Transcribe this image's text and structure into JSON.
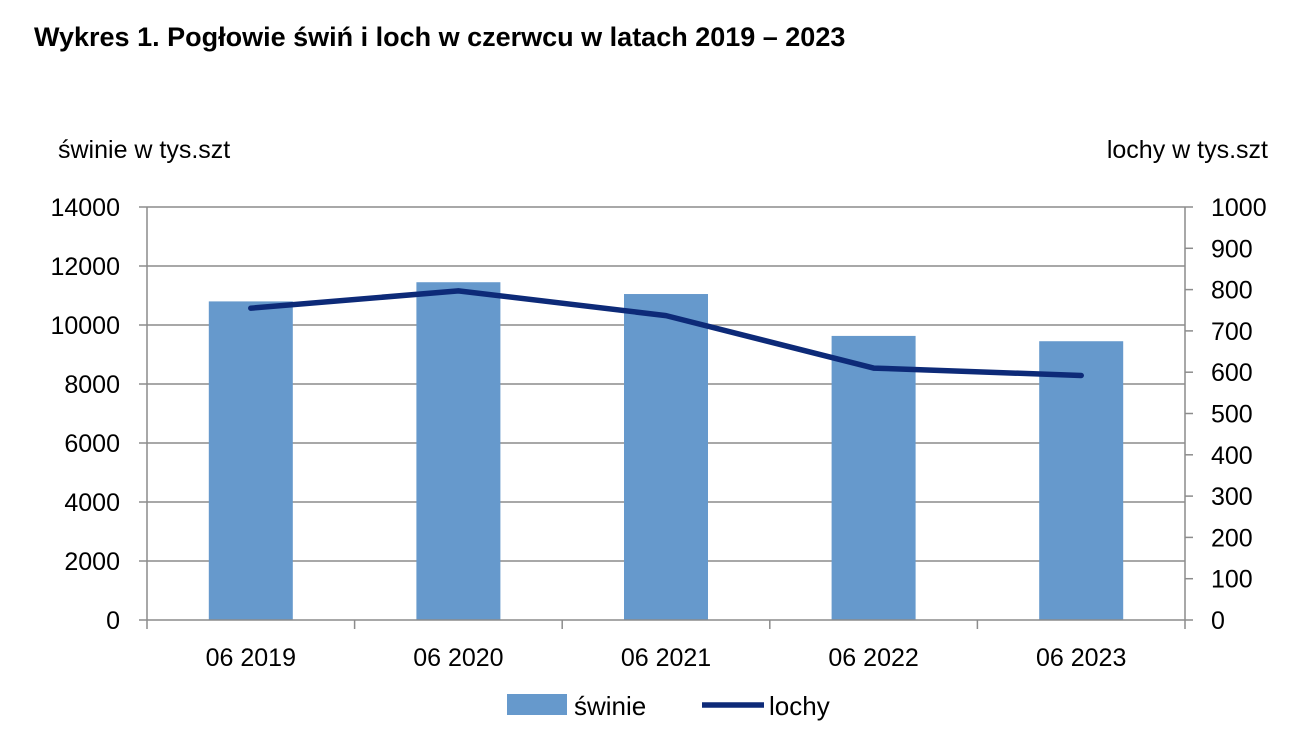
{
  "title": "Wykres 1. Pogłowie świń i loch w czerwcu w latach 2019 – 2023",
  "chart_data": {
    "type": "bar",
    "title": "Wykres 1. Pogłowie świń i loch w czerwcu w latach 2019 – 2023",
    "categories": [
      "06 2019",
      "06 2020",
      "06 2021",
      "06 2022",
      "06 2023"
    ],
    "ylabel_left": "świnie w tys.szt",
    "ylabel_right": "lochy w tys.szt",
    "ylim_left": [
      0,
      14000
    ],
    "yticks_left": [
      0,
      2000,
      4000,
      6000,
      8000,
      10000,
      12000,
      14000
    ],
    "ylim_right": [
      0,
      1000
    ],
    "yticks_right": [
      0,
      100,
      200,
      300,
      400,
      500,
      600,
      700,
      800,
      900,
      1000
    ],
    "grid": true,
    "legend_position": "bottom",
    "series": [
      {
        "name": "świnie",
        "type": "bar",
        "axis": "left",
        "color": "#6699CC",
        "values": [
          10800,
          11450,
          11050,
          9630,
          9450
        ]
      },
      {
        "name": "lochy",
        "type": "line",
        "axis": "right",
        "color": "#0D2A78",
        "values": [
          755,
          797,
          737,
          610,
          592
        ]
      }
    ]
  }
}
